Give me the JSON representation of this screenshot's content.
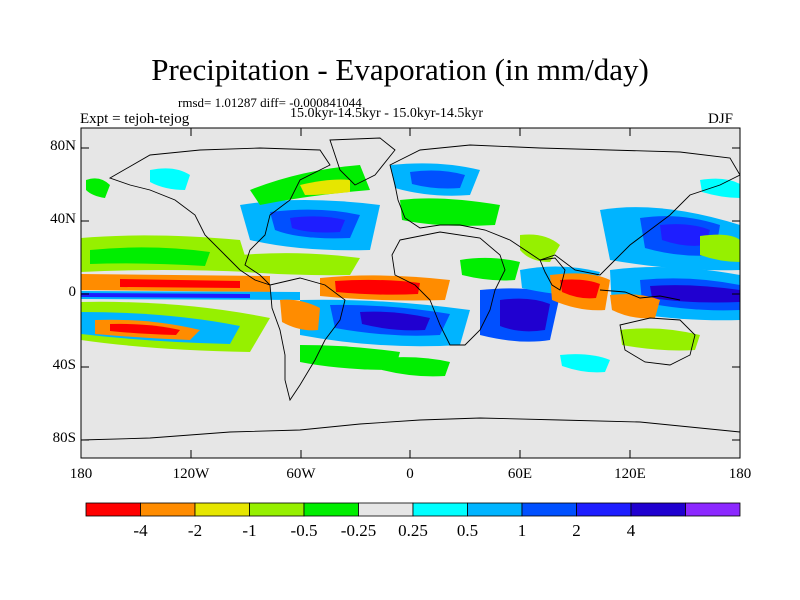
{
  "title": "Precipitation - Evaporation (in mm/day)",
  "stats": "rmsd= 1.01287 diff= -0.000841044",
  "experiment": "Expt = tejoh-tejog",
  "periods": "15.0kyr-14.5kyr - 15.0kyr-14.5kyr",
  "season": "DJF",
  "land_color": "#e6e6e6",
  "lat_labels": [
    "80N",
    "40N",
    "0",
    "40S",
    "80S"
  ],
  "lon_labels": [
    "180",
    "120W",
    "60W",
    "0",
    "60E",
    "120E",
    "180"
  ],
  "colorbar": {
    "colors": [
      "#ff0000",
      "#ff8c00",
      "#e6e600",
      "#96f000",
      "#00ee00",
      "#e6e6e6",
      "#00ffff",
      "#00b4ff",
      "#0050ff",
      "#1e1eff",
      "#2000d0",
      "#8c28ff"
    ],
    "labels": [
      "-4",
      "-2",
      "-1",
      "-0.5",
      "-0.25",
      "0.25",
      "0.5",
      "1",
      "2",
      "4"
    ]
  }
}
